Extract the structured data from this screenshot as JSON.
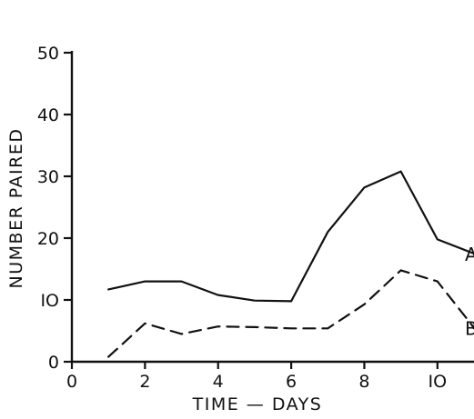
{
  "chart_data": {
    "type": "line",
    "title": "",
    "xlabel": "TIME — DAYS",
    "ylabel": "NUMBER PAIRED",
    "xlim": [
      0,
      11
    ],
    "ylim": [
      0,
      50
    ],
    "x_ticks": [
      0,
      2,
      4,
      6,
      8,
      10
    ],
    "x_tick_labels": [
      "0",
      "2",
      "4",
      "6",
      "8",
      "IO"
    ],
    "y_ticks": [
      0,
      10,
      20,
      30,
      40,
      50
    ],
    "y_tick_labels": [
      "0",
      "IO",
      "20",
      "30",
      "40",
      "50"
    ],
    "grid": false,
    "legend": "none",
    "series": [
      {
        "name": "A",
        "style": "solid",
        "x": [
          1,
          2,
          3,
          4,
          5,
          6,
          7,
          8,
          9,
          10,
          11
        ],
        "values": [
          11.7,
          13,
          13,
          10.8,
          9.9,
          9.8,
          21,
          28.2,
          30.8,
          19.8,
          17.5
        ]
      },
      {
        "name": "B",
        "style": "dashed",
        "x": [
          1,
          2,
          3,
          4,
          5,
          6,
          7,
          8,
          9,
          10,
          11
        ],
        "values": [
          0.8,
          6.2,
          4.5,
          5.7,
          5.6,
          5.4,
          5.4,
          9.3,
          14.8,
          13,
          5.5
        ]
      }
    ],
    "colors": {
      "line": "#111111",
      "background": "#ffffff"
    }
  }
}
